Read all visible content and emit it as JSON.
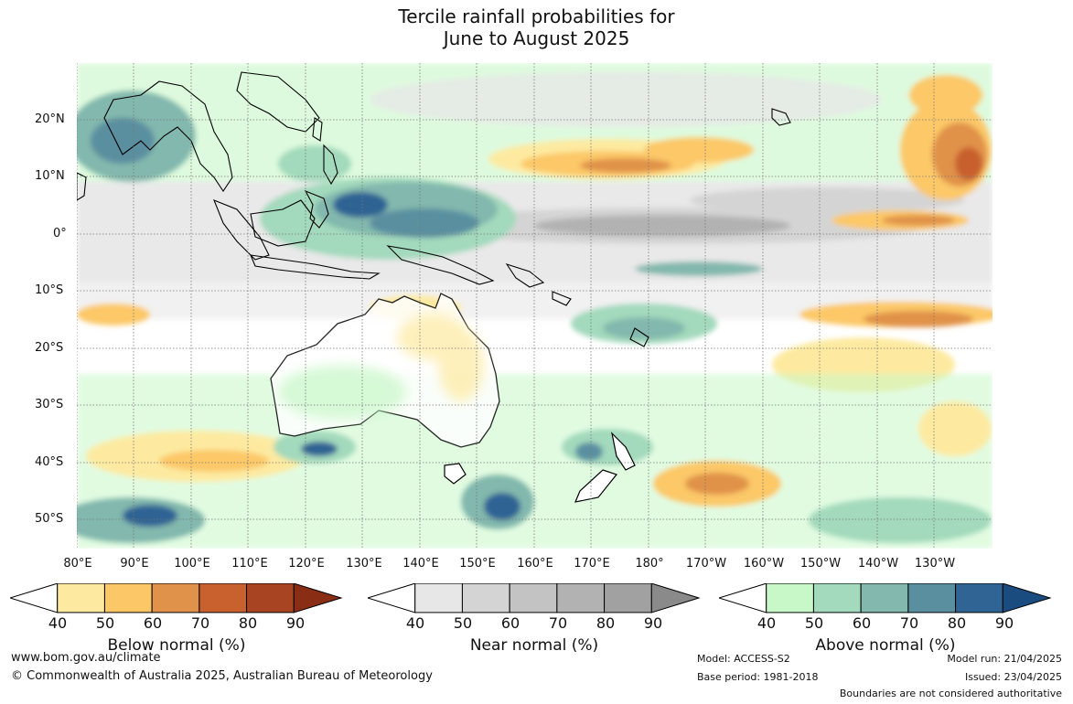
{
  "title_line1": "Tercile rainfall probabilities for",
  "title_line2": "June to August 2025",
  "lat_labels": [
    "20°N",
    "10°N",
    "0°",
    "10°S",
    "20°S",
    "30°S",
    "40°S",
    "50°S"
  ],
  "lon_labels": [
    "80°E",
    "90°E",
    "100°E",
    "110°E",
    "120°E",
    "130°E",
    "140°E",
    "150°E",
    "160°E",
    "170°E",
    "180°",
    "170°W",
    "160°W",
    "150°W",
    "140°W",
    "130°W"
  ],
  "legends": {
    "below": {
      "label": "Below normal (%)",
      "ticks": [
        "40",
        "50",
        "60",
        "70",
        "80",
        "90"
      ],
      "colors": [
        "#fdeaa0",
        "#fcc867",
        "#e0924a",
        "#c8612e",
        "#a94422",
        "#8a2d15"
      ]
    },
    "near": {
      "label": "Near normal (%)",
      "ticks": [
        "40",
        "50",
        "60",
        "70",
        "80",
        "90"
      ],
      "colors": [
        "#e7e7e7",
        "#d4d4d4",
        "#c3c3c3",
        "#b2b2b2",
        "#a1a1a1",
        "#8a8a8a"
      ]
    },
    "above": {
      "label": "Above normal (%)",
      "ticks": [
        "40",
        "50",
        "60",
        "70",
        "80",
        "90"
      ],
      "colors": [
        "#c8f7c8",
        "#a3d9bc",
        "#82b8ad",
        "#5a8fa0",
        "#2f6494",
        "#1a4c80"
      ]
    }
  },
  "footer": {
    "url": "www.bom.gov.au/climate",
    "copyright": "© Commonwealth of Australia 2025, Australian Bureau of Meteorology",
    "model": "Model: ACCESS-S2",
    "base_period": "Base period: 1981-2018",
    "model_run": "Model run: 21/04/2025",
    "issued": "Issued: 23/04/2025",
    "disclaimer": "Boundaries are not considered authoritative"
  }
}
